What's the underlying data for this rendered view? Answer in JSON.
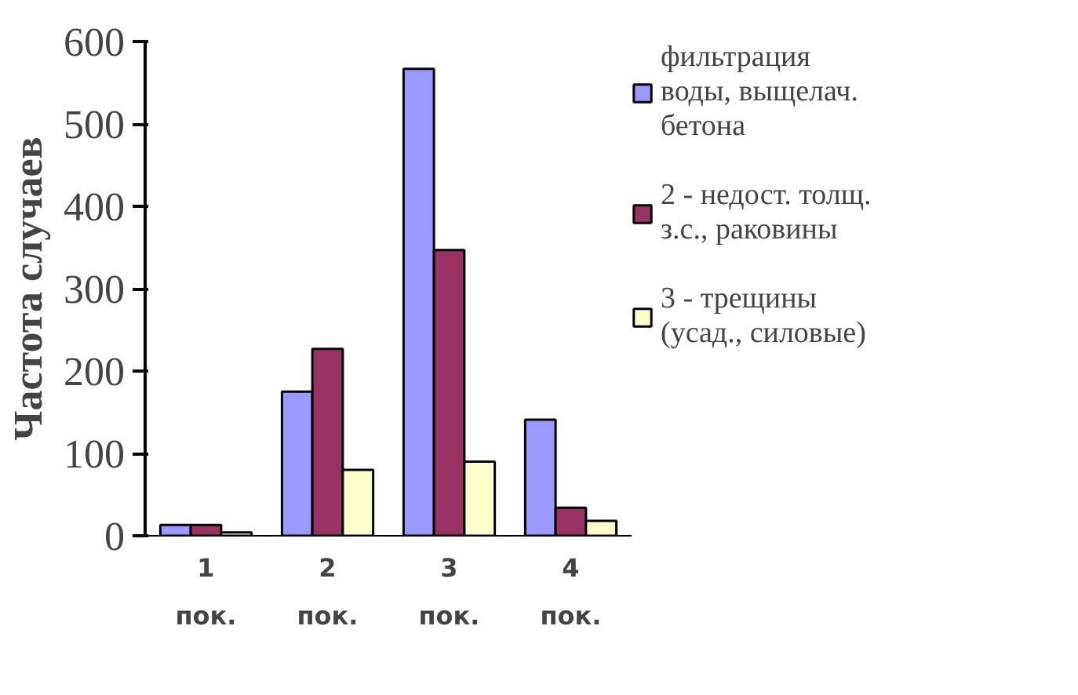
{
  "chart_data": {
    "type": "bar",
    "ylabel": "Частота случаев",
    "categories": [
      "1\nпок.",
      "2\nпок.",
      "3\nпок.",
      "4\nпок."
    ],
    "series": [
      {
        "name": "фильтрация\nводы, выщелач.\nбетона",
        "color": "#9999ff",
        "values": [
          13,
          175,
          567,
          141
        ]
      },
      {
        "name": "2 - недост. толщ.\nз.с., раковины",
        "color": "#993366",
        "values": [
          13,
          227,
          347,
          34
        ]
      },
      {
        "name": "3 - трещины\n(усад., силовые)",
        "color": "#ffffcc",
        "values": [
          4,
          80,
          90,
          18
        ]
      }
    ],
    "ylim": [
      0,
      600
    ],
    "yticks": [
      0,
      100,
      200,
      300,
      400,
      500,
      600
    ],
    "grid": false,
    "legend": "right"
  }
}
